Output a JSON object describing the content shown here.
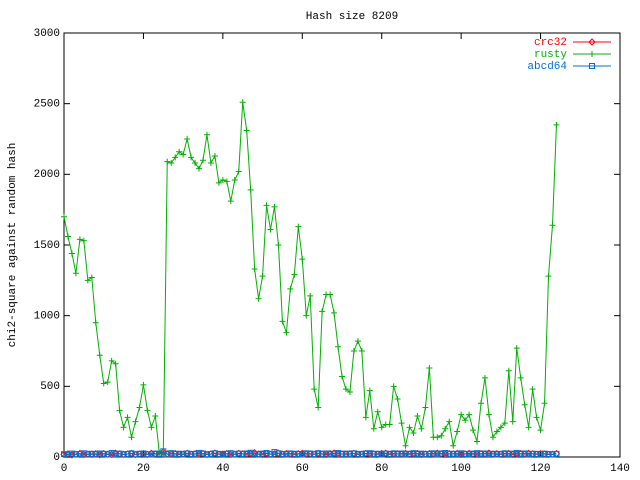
{
  "chart_data": {
    "type": "line",
    "title": "Hash size 8209",
    "y_label": "chi2-square against random hash",
    "xlim": [
      0,
      140
    ],
    "xticks": [
      0,
      20,
      40,
      60,
      80,
      100,
      120,
      140
    ],
    "ylim": [
      0,
      3000
    ],
    "yticks": [
      0,
      500,
      1000,
      1500,
      2000,
      2500,
      3000
    ],
    "legend": "top-right",
    "x": [
      0,
      1,
      2,
      3,
      4,
      5,
      6,
      7,
      8,
      9,
      10,
      11,
      12,
      13,
      14,
      15,
      16,
      17,
      18,
      19,
      20,
      21,
      22,
      23,
      24,
      25,
      26,
      27,
      28,
      29,
      30,
      31,
      32,
      33,
      34,
      35,
      36,
      37,
      38,
      39,
      40,
      41,
      42,
      43,
      44,
      45,
      46,
      47,
      48,
      49,
      50,
      51,
      52,
      53,
      54,
      55,
      56,
      57,
      58,
      59,
      60,
      61,
      62,
      63,
      64,
      65,
      66,
      67,
      68,
      69,
      70,
      71,
      72,
      73,
      74,
      75,
      76,
      77,
      78,
      79,
      80,
      81,
      82,
      83,
      84,
      85,
      86,
      87,
      88,
      89,
      90,
      91,
      92,
      93,
      94,
      95,
      96,
      97,
      98,
      99,
      100,
      101,
      102,
      103,
      104,
      105,
      106,
      107,
      108,
      109,
      110,
      111,
      112,
      113,
      114,
      115,
      116,
      117,
      118,
      119,
      120,
      121,
      122,
      123,
      124
    ],
    "series": [
      {
        "name": "crc32",
        "color": "#ff0000",
        "marker": "diamond",
        "values": [
          18,
          22,
          15,
          20,
          25,
          17,
          21,
          19,
          23,
          16,
          24,
          20,
          18,
          27,
          22,
          19,
          21,
          25,
          17,
          20,
          23,
          18,
          26,
          21,
          19,
          35,
          22,
          20,
          24,
          18,
          21,
          27,
          19,
          23,
          20,
          25,
          17,
          22,
          28,
          19,
          21,
          24,
          18,
          20,
          26,
          22,
          19,
          23,
          30,
          21,
          18,
          25,
          20,
          22,
          27,
          19,
          24,
          21,
          18,
          23,
          26,
          20,
          22,
          19,
          25,
          21,
          17,
          24,
          28,
          20,
          22,
          19,
          23,
          26,
          18,
          21,
          25,
          20,
          22,
          19,
          24,
          27,
          18,
          21,
          23,
          20,
          26,
          19,
          22,
          25,
          18,
          21,
          24,
          20,
          27,
          22,
          19,
          23,
          21,
          25,
          18,
          22,
          26,
          20,
          19,
          24,
          21,
          28,
          20,
          23,
          19,
          22,
          25,
          18,
          21,
          24,
          20,
          26,
          22,
          19,
          23,
          21,
          18,
          20,
          24
        ]
      },
      {
        "name": "rusty",
        "color": "#00b000",
        "marker": "plus",
        "values": [
          1700,
          1560,
          1440,
          1300,
          1540,
          1530,
          1250,
          1270,
          950,
          720,
          520,
          530,
          680,
          660,
          330,
          210,
          280,
          140,
          250,
          350,
          510,
          330,
          210,
          290,
          30,
          20,
          2090,
          2080,
          2120,
          2160,
          2140,
          2250,
          2120,
          2080,
          2040,
          2100,
          2280,
          2080,
          2130,
          1940,
          1960,
          1950,
          1810,
          1960,
          2020,
          2510,
          2310,
          1890,
          1330,
          1120,
          1280,
          1780,
          1610,
          1770,
          1500,
          960,
          880,
          1190,
          1290,
          1630,
          1400,
          1000,
          1140,
          480,
          350,
          1030,
          1150,
          1150,
          1020,
          780,
          570,
          480,
          460,
          750,
          820,
          750,
          280,
          470,
          200,
          320,
          210,
          230,
          230,
          500,
          410,
          240,
          80,
          210,
          170,
          290,
          200,
          350,
          630,
          140,
          140,
          150,
          200,
          250,
          80,
          180,
          300,
          260,
          300,
          190,
          110,
          380,
          560,
          300,
          140,
          180,
          210,
          240,
          610,
          250,
          770,
          560,
          370,
          210,
          480,
          280,
          190,
          380,
          1280,
          1640,
          2350
        ]
      },
      {
        "name": "abcd64",
        "color": "#0070d0",
        "marker": "square",
        "values": [
          20,
          15,
          24,
          18,
          21,
          26,
          17,
          23,
          19,
          25,
          22,
          18,
          28,
          20,
          24,
          17,
          21,
          26,
          19,
          23,
          25,
          20,
          18,
          24,
          22,
          40,
          19,
          27,
          21,
          23,
          18,
          25,
          22,
          20,
          29,
          24,
          19,
          21,
          26,
          22,
          20,
          23,
          27,
          18,
          24,
          21,
          25,
          30,
          22,
          19,
          24,
          28,
          20,
          35,
          26,
          22,
          19,
          25,
          23,
          21,
          18,
          26,
          24,
          20,
          27,
          22,
          25,
          19,
          23,
          28,
          21,
          24,
          20,
          26,
          22,
          19,
          25,
          27,
          21,
          23,
          18,
          24,
          22,
          26,
          20,
          25,
          19,
          23,
          27,
          21,
          24,
          20,
          22,
          26,
          19,
          25,
          28,
          21,
          23,
          20,
          26,
          22,
          19,
          24,
          27,
          21,
          25,
          20,
          23,
          18,
          22,
          26,
          20,
          24,
          29,
          21,
          25,
          19,
          23,
          22,
          20,
          24,
          21,
          18,
          22
        ]
      }
    ]
  }
}
